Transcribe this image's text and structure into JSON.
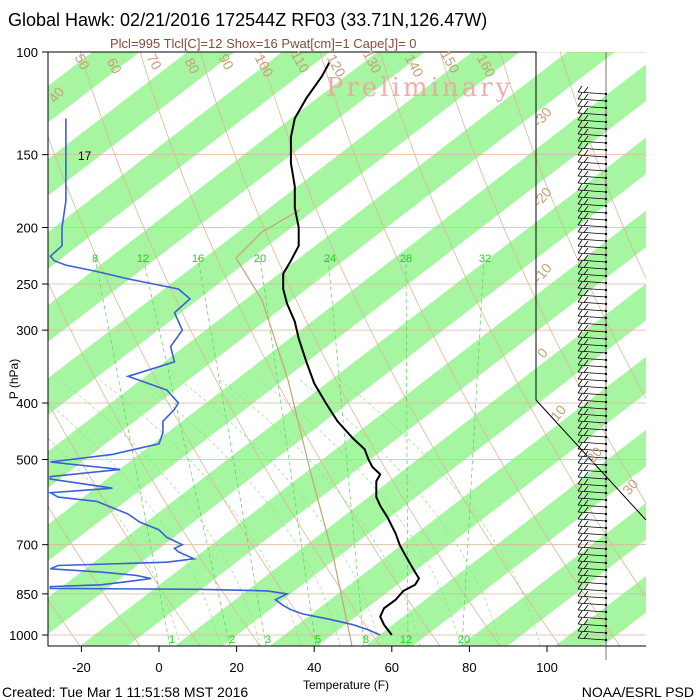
{
  "header": {
    "title": "Global Hawk: 02/21/2016 172544Z RF03 (33.71N,126.47W)",
    "indices": "Plcl=995 Tlcl[C]=12 Shox=16 Pwat[cm]=1 Cape[J]= 0"
  },
  "watermark": "Preliminary",
  "footer": {
    "created": "Created: Tue Mar  1 11:51:58 MST 2016",
    "credit": "NOAA/ESRL PSD"
  },
  "colors": {
    "band": "#a6f5a0",
    "temperature": "#000000",
    "dewpoint": "#3a5fd8",
    "dry_adiabat": "#c8a078",
    "mixing_ratio": "#22cc22",
    "watermark": "#f0a0a0"
  },
  "chart_data": {
    "type": "line",
    "title": "Global Hawk: 02/21/2016 172544Z RF03 (33.71N,126.47W)",
    "xlabel": "Temperature (F)",
    "ylabel": "P (hPa)",
    "x_ticks": [
      -20,
      0,
      20,
      40,
      60,
      80,
      100
    ],
    "y_ticks": [
      100,
      150,
      200,
      250,
      300,
      400,
      500,
      700,
      850,
      1000
    ],
    "xlim": [
      -28,
      120
    ],
    "ylim": [
      1050,
      100
    ],
    "y_scale": "log",
    "mixing_ratio_labels_top": [
      "8",
      "12",
      "16",
      "20",
      "24",
      "28",
      "32"
    ],
    "mixing_ratio_labels_bottom": [
      "1",
      "2",
      "3",
      "5",
      "8",
      "12",
      "20"
    ],
    "dry_adiabat_labels": [
      "50",
      "60",
      "70",
      "80",
      "90",
      "100",
      "110",
      "120",
      "130",
      "140",
      "150",
      "160"
    ],
    "isotherm_labels": [
      "-30",
      "-20",
      "-10",
      "0",
      "10",
      "20",
      "30",
      "40"
    ],
    "annotation": "17",
    "series": [
      {
        "name": "temperature",
        "points": [
          [
            1000,
            60
          ],
          [
            960,
            58
          ],
          [
            930,
            57
          ],
          [
            900,
            58
          ],
          [
            870,
            61
          ],
          [
            840,
            63
          ],
          [
            820,
            66
          ],
          [
            800,
            67
          ],
          [
            780,
            66
          ],
          [
            760,
            65
          ],
          [
            740,
            64
          ],
          [
            720,
            63
          ],
          [
            700,
            62
          ],
          [
            670,
            61
          ],
          [
            650,
            60
          ],
          [
            630,
            59
          ],
          [
            600,
            57
          ],
          [
            580,
            56
          ],
          [
            560,
            56
          ],
          [
            545,
            56
          ],
          [
            530,
            57
          ],
          [
            515,
            55
          ],
          [
            500,
            54
          ],
          [
            480,
            53
          ],
          [
            460,
            50
          ],
          [
            430,
            46
          ],
          [
            400,
            43
          ],
          [
            370,
            40
          ],
          [
            340,
            38
          ],
          [
            310,
            36
          ],
          [
            290,
            35
          ],
          [
            270,
            33
          ],
          [
            255,
            32
          ],
          [
            240,
            32
          ],
          [
            228,
            34
          ],
          [
            215,
            36
          ],
          [
            200,
            36
          ],
          [
            185,
            35
          ],
          [
            170,
            35
          ],
          [
            155,
            34
          ],
          [
            140,
            34
          ],
          [
            130,
            35
          ],
          [
            120,
            38
          ],
          [
            110,
            42
          ],
          [
            104,
            44
          ]
        ]
      },
      {
        "name": "dewpoint",
        "points": [
          [
            1000,
            57
          ],
          [
            980,
            54
          ],
          [
            960,
            50
          ],
          [
            940,
            44
          ],
          [
            920,
            37
          ],
          [
            905,
            34
          ],
          [
            890,
            32
          ],
          [
            870,
            30
          ],
          [
            850,
            33
          ],
          [
            840,
            28
          ],
          [
            835,
            10
          ],
          [
            832,
            -28
          ],
          [
            826,
            -28
          ],
          [
            820,
            -15
          ],
          [
            810,
            -8
          ],
          [
            800,
            -2
          ],
          [
            790,
            -6
          ],
          [
            780,
            -15
          ],
          [
            770,
            -28
          ],
          [
            760,
            -26
          ],
          [
            750,
            2
          ],
          [
            740,
            9
          ],
          [
            730,
            7
          ],
          [
            720,
            5
          ],
          [
            710,
            4
          ],
          [
            700,
            6
          ],
          [
            680,
            2
          ],
          [
            660,
            0
          ],
          [
            640,
            -5
          ],
          [
            620,
            -8
          ],
          [
            605,
            -12
          ],
          [
            590,
            -16
          ],
          [
            580,
            -26
          ],
          [
            570,
            -28
          ],
          [
            560,
            -12
          ],
          [
            550,
            -20
          ],
          [
            540,
            -28
          ],
          [
            535,
            -28
          ],
          [
            520,
            -10
          ],
          [
            505,
            -28
          ],
          [
            490,
            -12
          ],
          [
            470,
            0
          ],
          [
            450,
            1
          ],
          [
            430,
            1
          ],
          [
            410,
            4
          ],
          [
            400,
            5
          ],
          [
            380,
            2
          ],
          [
            360,
            -8
          ],
          [
            350,
            -2
          ],
          [
            340,
            4
          ],
          [
            320,
            3
          ],
          [
            300,
            6
          ],
          [
            280,
            4
          ],
          [
            265,
            8
          ],
          [
            255,
            5
          ],
          [
            245,
            -8
          ],
          [
            238,
            -16
          ],
          [
            232,
            -24
          ],
          [
            228,
            -27
          ],
          [
            224,
            -28
          ],
          [
            215,
            -25
          ],
          [
            200,
            -25
          ],
          [
            180,
            -24
          ],
          [
            160,
            -24
          ],
          [
            145,
            -24
          ],
          [
            130,
            -24
          ]
        ]
      }
    ]
  }
}
